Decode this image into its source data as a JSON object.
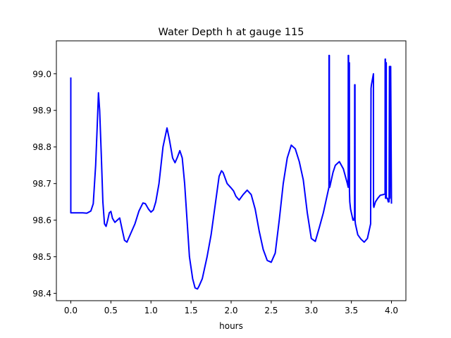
{
  "chart_data": {
    "type": "line",
    "title": "Water Depth h at gauge 115",
    "xlabel": "hours",
    "ylabel": "",
    "xlim": [
      -0.18,
      4.18
    ],
    "ylim": [
      98.38,
      99.09
    ],
    "xticks": [
      0.0,
      0.5,
      1.0,
      1.5,
      2.0,
      2.5,
      3.0,
      3.5,
      4.0
    ],
    "xtick_labels": [
      "0.0",
      "0.5",
      "1.0",
      "1.5",
      "2.0",
      "2.5",
      "3.0",
      "3.5",
      "4.0"
    ],
    "yticks": [
      98.4,
      98.5,
      98.6,
      98.7,
      98.8,
      98.9,
      99.0
    ],
    "ytick_labels": [
      "98.4",
      "98.5",
      "98.6",
      "98.7",
      "98.8",
      "98.9",
      "99.0"
    ],
    "grid": false,
    "legend": "none",
    "series": [
      {
        "color": "#0000ff",
        "x": [
          0.0,
          0.0,
          0.001,
          0.05,
          0.1,
          0.15,
          0.2,
          0.25,
          0.28,
          0.31,
          0.33,
          0.345,
          0.36,
          0.38,
          0.4,
          0.42,
          0.44,
          0.46,
          0.48,
          0.5,
          0.52,
          0.55,
          0.58,
          0.61,
          0.64,
          0.67,
          0.7,
          0.75,
          0.8,
          0.85,
          0.9,
          0.93,
          0.97,
          1.0,
          1.03,
          1.06,
          1.1,
          1.15,
          1.2,
          1.23,
          1.27,
          1.3,
          1.33,
          1.36,
          1.39,
          1.42,
          1.45,
          1.48,
          1.52,
          1.55,
          1.58,
          1.6,
          1.64,
          1.7,
          1.75,
          1.8,
          1.85,
          1.88,
          1.9,
          1.95,
          2.0,
          2.03,
          2.06,
          2.1,
          2.15,
          2.2,
          2.25,
          2.3,
          2.35,
          2.4,
          2.45,
          2.5,
          2.55,
          2.6,
          2.65,
          2.7,
          2.75,
          2.8,
          2.85,
          2.9,
          2.95,
          3.0,
          3.05,
          3.1,
          3.15,
          3.2,
          3.22,
          3.221,
          3.225,
          3.226,
          3.23,
          3.27,
          3.3,
          3.35,
          3.4,
          3.45,
          3.46,
          3.461,
          3.465,
          3.466,
          3.47,
          3.471,
          3.475,
          3.476,
          3.48,
          3.49,
          3.5,
          3.51,
          3.52,
          3.53,
          3.54,
          3.541,
          3.545,
          3.546,
          3.55,
          3.58,
          3.62,
          3.66,
          3.7,
          3.72,
          3.73,
          3.74,
          3.745,
          3.75,
          3.775,
          3.776,
          3.78,
          3.8,
          3.83,
          3.86,
          3.9,
          3.92,
          3.921,
          3.925,
          3.926,
          3.93,
          3.931,
          3.935,
          3.936,
          3.94,
          3.95,
          3.96,
          3.97,
          3.975,
          3.976,
          3.98,
          3.99,
          4.0
        ],
        "y": [
          98.99,
          98.62,
          98.62,
          98.62,
          98.62,
          98.62,
          98.619,
          98.625,
          98.645,
          98.75,
          98.86,
          98.948,
          98.9,
          98.78,
          98.65,
          98.59,
          98.583,
          98.6,
          98.62,
          98.624,
          98.605,
          98.594,
          98.6,
          98.606,
          98.575,
          98.545,
          98.54,
          98.565,
          98.59,
          98.625,
          98.647,
          98.645,
          98.63,
          98.622,
          98.628,
          98.65,
          98.7,
          98.8,
          98.852,
          98.82,
          98.77,
          98.757,
          98.772,
          98.79,
          98.77,
          98.7,
          98.6,
          98.5,
          98.44,
          98.415,
          98.412,
          98.42,
          98.44,
          98.5,
          98.56,
          98.64,
          98.72,
          98.735,
          98.73,
          98.7,
          98.688,
          98.68,
          98.665,
          98.655,
          98.67,
          98.682,
          98.67,
          98.63,
          98.57,
          98.52,
          98.49,
          98.485,
          98.51,
          98.6,
          98.7,
          98.77,
          98.805,
          98.795,
          98.76,
          98.71,
          98.62,
          98.55,
          98.542,
          98.58,
          98.62,
          98.67,
          98.69,
          99.05,
          99.05,
          98.7,
          98.69,
          98.73,
          98.75,
          98.76,
          98.74,
          98.7,
          98.69,
          99.05,
          99.05,
          98.7,
          98.69,
          99.03,
          99.03,
          98.68,
          98.65,
          98.63,
          98.62,
          98.61,
          98.6,
          98.6,
          98.61,
          98.97,
          98.97,
          98.6,
          98.59,
          98.56,
          98.548,
          98.54,
          98.55,
          98.57,
          98.58,
          98.59,
          98.96,
          98.97,
          99.0,
          98.64,
          98.635,
          98.65,
          98.66,
          98.668,
          98.67,
          98.672,
          99.04,
          99.04,
          98.66,
          98.66,
          99.03,
          99.03,
          98.66,
          98.66,
          98.66,
          98.65,
          98.65,
          99.02,
          99.02,
          98.66,
          99.02,
          98.645
        ]
      }
    ]
  }
}
